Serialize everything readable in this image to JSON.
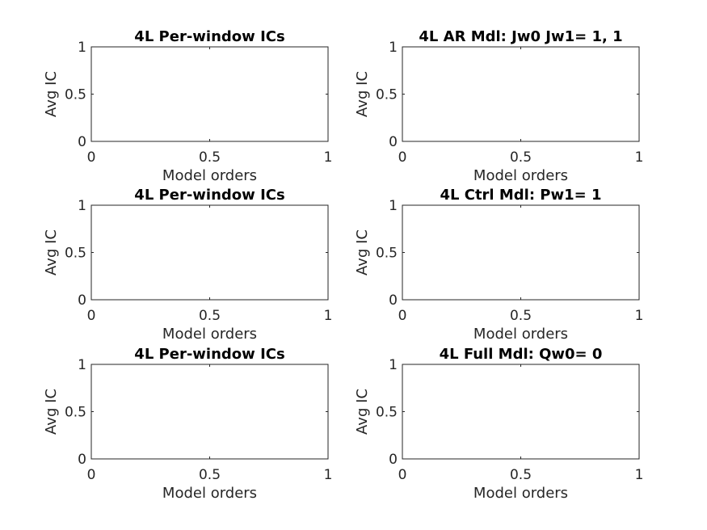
{
  "chart_data": [
    {
      "type": "line",
      "title": "4L Per-window ICs",
      "xlabel": "Model orders",
      "ylabel": "Avg IC",
      "xlim": [
        0,
        1
      ],
      "ylim": [
        0,
        1
      ],
      "x_ticks": [
        "0",
        "0.5",
        "1"
      ],
      "y_ticks": [
        "0",
        "0.5",
        "1"
      ],
      "series": [],
      "grid": false
    },
    {
      "type": "line",
      "title": "4L AR Mdl: Jw0 Jw1= 1, 1",
      "xlabel": "Model orders",
      "ylabel": "Avg IC",
      "xlim": [
        0,
        1
      ],
      "ylim": [
        0,
        1
      ],
      "x_ticks": [
        "0",
        "0.5",
        "1"
      ],
      "y_ticks": [
        "0",
        "0.5",
        "1"
      ],
      "series": [],
      "grid": false
    },
    {
      "type": "line",
      "title": "4L Per-window ICs",
      "xlabel": "Model orders",
      "ylabel": "Avg IC",
      "xlim": [
        0,
        1
      ],
      "ylim": [
        0,
        1
      ],
      "x_ticks": [
        "0",
        "0.5",
        "1"
      ],
      "y_ticks": [
        "0",
        "0.5",
        "1"
      ],
      "series": [],
      "grid": false
    },
    {
      "type": "line",
      "title": "4L Ctrl Mdl: Pw1= 1",
      "xlabel": "Model orders",
      "ylabel": "Avg IC",
      "xlim": [
        0,
        1
      ],
      "ylim": [
        0,
        1
      ],
      "x_ticks": [
        "0",
        "0.5",
        "1"
      ],
      "y_ticks": [
        "0",
        "0.5",
        "1"
      ],
      "series": [],
      "grid": false
    },
    {
      "type": "line",
      "title": "4L Per-window ICs",
      "xlabel": "Model orders",
      "ylabel": "Avg IC",
      "xlim": [
        0,
        1
      ],
      "ylim": [
        0,
        1
      ],
      "x_ticks": [
        "0",
        "0.5",
        "1"
      ],
      "y_ticks": [
        "0",
        "0.5",
        "1"
      ],
      "series": [],
      "grid": false
    },
    {
      "type": "line",
      "title": "4L Full Mdl: Qw0= 0",
      "xlabel": "Model orders",
      "ylabel": "Avg IC",
      "xlim": [
        0,
        1
      ],
      "ylim": [
        0,
        1
      ],
      "x_ticks": [
        "0",
        "0.5",
        "1"
      ],
      "y_ticks": [
        "0",
        "0.5",
        "1"
      ],
      "series": [],
      "grid": false
    }
  ]
}
